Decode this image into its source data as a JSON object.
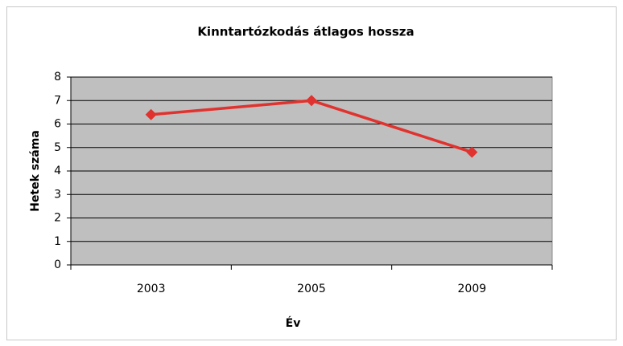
{
  "chart_data": {
    "type": "line",
    "title": "Kinntartózkodás átlagos hossza",
    "x_label": "Év",
    "y_label": "Hetek száma",
    "categories": [
      "2003",
      "2005",
      "2009"
    ],
    "series": [
      {
        "name": "Hetek száma",
        "color": "#e0322e",
        "values": [
          6.4,
          7.0,
          4.8
        ]
      }
    ],
    "ylim": [
      0,
      8
    ],
    "yticks": [
      0,
      1,
      2,
      3,
      4,
      5,
      6,
      7,
      8
    ],
    "grid": true,
    "plot_background": "#bfbfbf"
  }
}
